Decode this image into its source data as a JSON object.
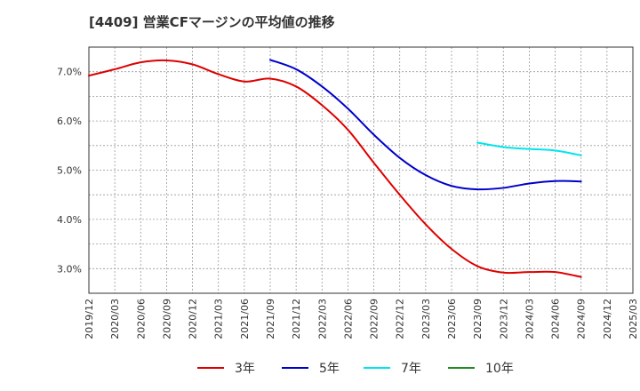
{
  "chart_data": {
    "type": "line",
    "title": "[4409]  営業CFマージンの平均値の推移",
    "xlabel": "",
    "ylabel": "",
    "x_ticks": [
      "2019/12",
      "2020/03",
      "2020/06",
      "2020/09",
      "2020/12",
      "2021/03",
      "2021/06",
      "2021/09",
      "2021/12",
      "2022/03",
      "2022/06",
      "2022/09",
      "2022/12",
      "2023/03",
      "2023/06",
      "2023/09",
      "2023/12",
      "2024/03",
      "2024/06",
      "2024/09",
      "2024/12",
      "2025/03"
    ],
    "y_ticks": [
      "3.0%",
      "4.0%",
      "5.0%",
      "6.0%",
      "7.0%"
    ],
    "ylim": [
      2.5,
      7.5
    ],
    "grid": true,
    "legend_position": "bottom",
    "series": [
      {
        "name": "3年",
        "color": "#dd0000",
        "points": [
          [
            "2019/12",
            6.92
          ],
          [
            "2020/03",
            7.05
          ],
          [
            "2020/06",
            7.19
          ],
          [
            "2020/09",
            7.23
          ],
          [
            "2020/12",
            7.15
          ],
          [
            "2021/03",
            6.95
          ],
          [
            "2021/06",
            6.8
          ],
          [
            "2021/09",
            6.86
          ],
          [
            "2021/12",
            6.7
          ],
          [
            "2022/03",
            6.32
          ],
          [
            "2022/06",
            5.82
          ],
          [
            "2022/09",
            5.15
          ],
          [
            "2022/12",
            4.5
          ],
          [
            "2023/03",
            3.9
          ],
          [
            "2023/06",
            3.4
          ],
          [
            "2023/09",
            3.05
          ],
          [
            "2023/12",
            2.92
          ],
          [
            "2024/03",
            2.93
          ],
          [
            "2024/06",
            2.93
          ],
          [
            "2024/09",
            2.83
          ]
        ]
      },
      {
        "name": "5年",
        "color": "#0000cc",
        "points": [
          [
            "2021/09",
            7.24
          ],
          [
            "2021/12",
            7.05
          ],
          [
            "2022/03",
            6.7
          ],
          [
            "2022/06",
            6.25
          ],
          [
            "2022/09",
            5.72
          ],
          [
            "2022/12",
            5.25
          ],
          [
            "2023/03",
            4.9
          ],
          [
            "2023/06",
            4.68
          ],
          [
            "2023/09",
            4.61
          ],
          [
            "2023/12",
            4.64
          ],
          [
            "2024/03",
            4.73
          ],
          [
            "2024/06",
            4.78
          ],
          [
            "2024/09",
            4.77
          ]
        ]
      },
      {
        "name": "7年",
        "color": "#00e5ee",
        "points": [
          [
            "2023/09",
            5.56
          ],
          [
            "2023/12",
            5.47
          ],
          [
            "2024/03",
            5.43
          ],
          [
            "2024/06",
            5.4
          ],
          [
            "2024/09",
            5.3
          ]
        ]
      },
      {
        "name": "10年",
        "color": "#228b22",
        "points": []
      }
    ]
  }
}
